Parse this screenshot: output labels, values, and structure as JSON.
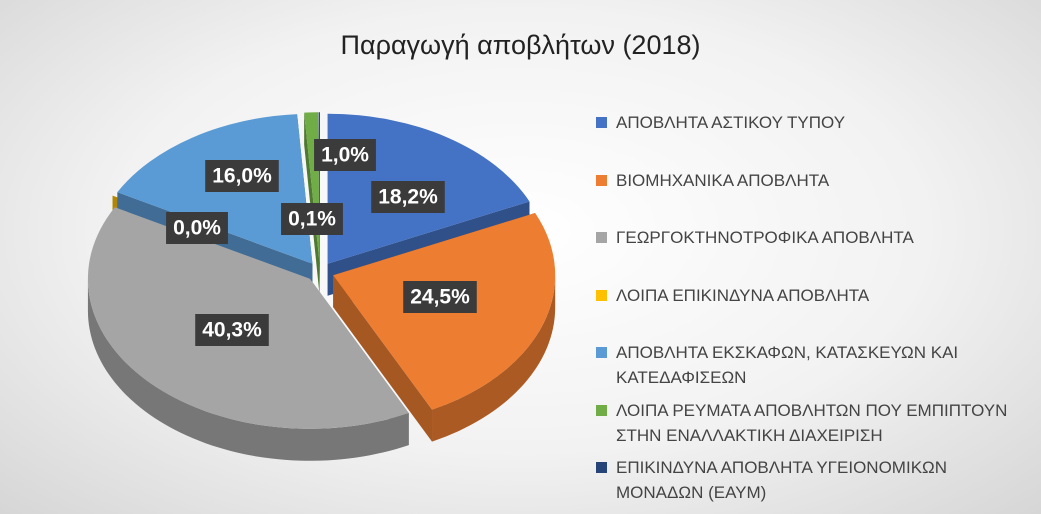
{
  "chart_data": {
    "type": "pie3d",
    "title": "Παραγωγή αποβλήτων (2018)",
    "categories": [
      "ΑΠΟΒΛΗΤΑ ΑΣΤΙΚΟΥ ΤΥΠΟΥ",
      "ΒΙΟΜΗΧΑΝΙΚΑ ΑΠΟΒΛΗΤΑ",
      "ΓΕΩΡΓΟΚΤΗΝΟΤΡΟΦΙΚΑ ΑΠΟΒΛΗΤΑ",
      "ΛΟΙΠΑ ΕΠΙΚΙΝΔΥΝΑ ΑΠΟΒΛΗΤΑ",
      "ΑΠΟΒΛΗΤΑ ΕΚΣΚΑΦΩΝ, ΚΑΤΑΣΚΕΥΩΝ ΚΑΙ ΚΑΤΕΔΑΦΙΣΕΩΝ",
      "ΛΟΙΠΑ ΡΕΥΜΑΤΑ ΑΠΟΒΛΗΤΩΝ ΠΟΥ ΕΜΠΙΠΤΟΥΝ ΣΤΗΝ ΕΝΑΛΛΑΚΤΙΚΗ ΔΙΑΧΕΙΡΙΣΗ",
      "ΕΠΙΚΙΝΔΥΝΑ ΑΠΟΒΛΗΤΑ ΥΓΕΙΟΝΟΜΙΚΩΝ ΜΟΝΑΔΩΝ (ΕΑΥΜ)"
    ],
    "values": [
      18.2,
      24.5,
      40.3,
      0.0,
      16.0,
      1.0,
      0.1
    ],
    "value_labels": [
      "18,2%",
      "24,5%",
      "40,3%",
      "0,0%",
      "16,0%",
      "1,0%",
      "0,1%"
    ],
    "colors": [
      "#4472c4",
      "#ed7d31",
      "#a5a5a5",
      "#ffc000",
      "#5b9bd5",
      "#70ad47",
      "#264478"
    ],
    "legend": "right"
  }
}
